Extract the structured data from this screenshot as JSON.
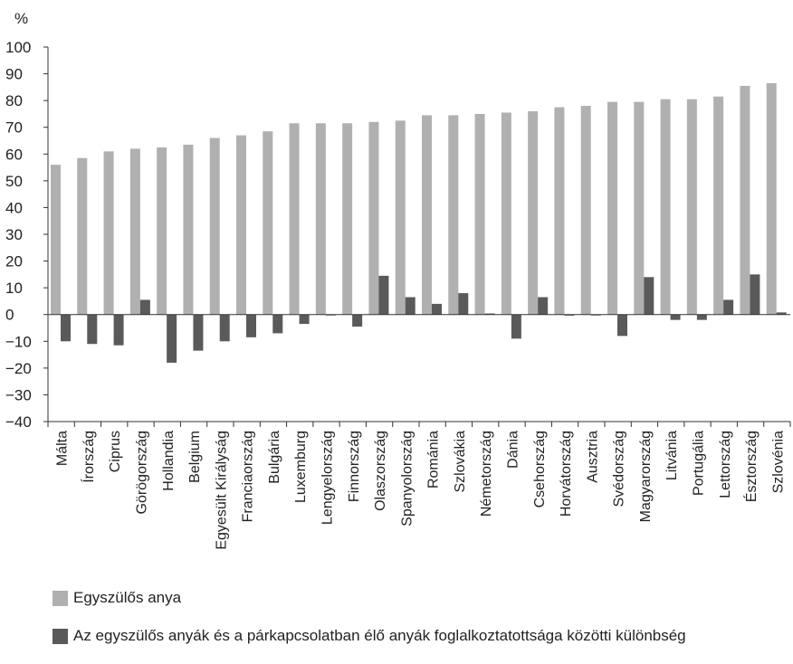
{
  "chart_data": {
    "type": "bar",
    "title": "",
    "xlabel": "",
    "ylabel": "%",
    "ylim": [
      -40,
      100
    ],
    "yticks": [
      100,
      90,
      80,
      70,
      60,
      50,
      40,
      30,
      20,
      10,
      0,
      -10,
      -20,
      -30,
      -40
    ],
    "grid": false,
    "legend_position": "bottom-left",
    "categories": [
      "Málta",
      "Írország",
      "Ciprus",
      "Görögország",
      "Hollandia",
      "Belgium",
      "Egyesült Királyság",
      "Franciaország",
      "Bulgária",
      "Luxemburg",
      "Lengyelország",
      "Finnország",
      "Olaszország",
      "Spanyolország",
      "Románia",
      "Szlovákia",
      "Németország",
      "Dánia",
      "Csehország",
      "Horvátország",
      "Ausztria",
      "Svédország",
      "Magyarország",
      "Litvánia",
      "Portugália",
      "Lettország",
      "Észtország",
      "Szlovénia"
    ],
    "series": [
      {
        "name": "Egyszülős anya",
        "color": "#b0b0b0",
        "values": [
          56,
          58.5,
          61,
          62,
          62.5,
          63.5,
          66,
          67,
          68.5,
          71.5,
          71.5,
          71.5,
          72,
          72.5,
          74.5,
          74.5,
          75,
          75.5,
          76,
          77.5,
          78,
          79.5,
          79.5,
          80.5,
          80.5,
          81.5,
          85.5,
          86.5
        ]
      },
      {
        "name": "Az egyszülős anyák és a párkapcsolatban élő anyák foglalkoztatottsága közötti különbség",
        "color": "#5a5a5a",
        "values": [
          -10,
          -11,
          -11.5,
          5.5,
          -18,
          -13.5,
          -10,
          -8.5,
          -7,
          -3.5,
          -0.3,
          -4.5,
          14.5,
          6.5,
          4,
          8,
          0.4,
          -9,
          6.5,
          -0.4,
          -0.3,
          -8,
          14,
          -2,
          -2,
          5.5,
          15,
          0.8
        ]
      }
    ]
  }
}
